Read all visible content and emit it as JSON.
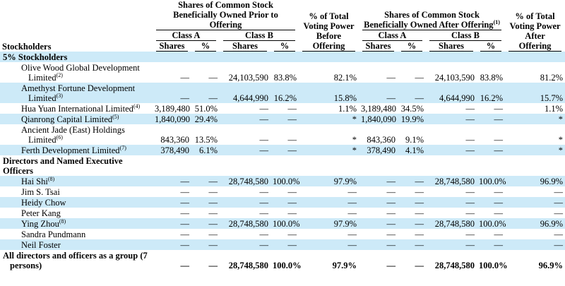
{
  "header": {
    "stockholders": "Stockholders",
    "prior": "Shares of Common Stock Beneficially Owned Prior to Offering",
    "before": "% of Total Voting Power Before Offering",
    "after_shares": "Shares of Common Stock Beneficially Owned After Offering",
    "after_note": "(1)",
    "after": "% of Total Voting Power After Offering",
    "classes": [
      "Class A",
      "Class B",
      "Class A",
      "Class B"
    ],
    "columns": [
      "Shares",
      "%",
      "Shares",
      "%",
      "Shares",
      "%",
      "Shares",
      "%"
    ]
  },
  "rows": [
    {
      "section": "5% Stockholders"
    },
    {
      "name": "Olive Wood Global Development Limited",
      "note": "(2)",
      "cells": [
        "—",
        "—",
        "24,103,590",
        "83.8%",
        "82.1%",
        "—",
        "—",
        "24,103,590",
        "83.8%",
        "81.2%"
      ]
    },
    {
      "name": "Amethyst Fortune Development Limited",
      "note": "(3)",
      "cells": [
        "—",
        "—",
        "4,644,990",
        "16.2%",
        "15.8%",
        "—",
        "—",
        "4,644,990",
        "16.2%",
        "15.7%"
      ]
    },
    {
      "name": "Hua Yuan International Limited",
      "note": "(4)",
      "cells": [
        "3,189,480",
        "51.0%",
        "—",
        "—",
        "1.1%",
        "3,189,480",
        "34.5%",
        "—",
        "—",
        "1.1%"
      ]
    },
    {
      "name": "Qianrong Capital Limited",
      "note": "(5)",
      "cells": [
        "1,840,090",
        "29.4%",
        "—",
        "—",
        "*",
        "1,840,090",
        "19.9%",
        "—",
        "—",
        "*"
      ]
    },
    {
      "name": "Ancient Jade (East) Holdings Limited",
      "note": "(6)",
      "cells": [
        "843,360",
        "13.5%",
        "—",
        "—",
        "*",
        "843,360",
        "9.1%",
        "—",
        "—",
        "*"
      ]
    },
    {
      "name": "Ferth Development Limited",
      "note": "(7)",
      "cells": [
        "378,490",
        "6.1%",
        "—",
        "—",
        "*",
        "378,490",
        "4.1%",
        "—",
        "—",
        "*"
      ]
    },
    {
      "section": "Directors and Named Executive Officers"
    },
    {
      "name": "Hai Shi",
      "note": "(8)",
      "cells": [
        "—",
        "—",
        "28,748,580",
        "100.0%",
        "97.9%",
        "—",
        "—",
        "28,748,580",
        "100.0%",
        "96.9%"
      ]
    },
    {
      "name": "Jim S. Tsai",
      "cells": [
        "—",
        "—",
        "—",
        "—",
        "—",
        "—",
        "—",
        "—",
        "—",
        "—"
      ]
    },
    {
      "name": "Heidy Chow",
      "cells": [
        "—",
        "—",
        "—",
        "—",
        "—",
        "—",
        "—",
        "—",
        "—",
        "—"
      ]
    },
    {
      "name": "Peter Kang",
      "cells": [
        "—",
        "—",
        "—",
        "—",
        "—",
        "—",
        "—",
        "—",
        "—",
        "—"
      ]
    },
    {
      "name": "Ying Zhou",
      "note": "(8)",
      "cells": [
        "—",
        "—",
        "28,748,580",
        "100.0%",
        "97.9%",
        "—",
        "—",
        "28,748,580",
        "100.0%",
        "96.9%"
      ]
    },
    {
      "name": "Sandra Pundmann",
      "cells": [
        "—",
        "—",
        "—",
        "—",
        "—",
        "—",
        "—",
        "—",
        "—",
        "—"
      ]
    },
    {
      "name": "Neil Foster",
      "cells": [
        "—",
        "—",
        "—",
        "—",
        "—",
        "—",
        "—",
        "—",
        "—",
        "—"
      ]
    },
    {
      "name": "All directors and officers as a group (7 persons)",
      "bold": true,
      "cells": [
        "—",
        "—",
        "28,748,580",
        "100.0%",
        "97.9%",
        "—",
        "—",
        "28,748,580",
        "100.0%",
        "96.9%"
      ]
    }
  ]
}
